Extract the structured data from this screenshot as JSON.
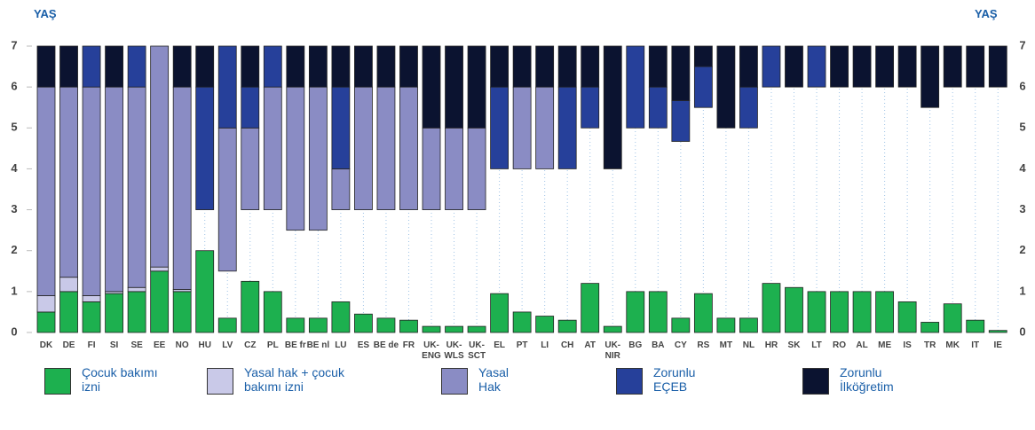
{
  "chart_data": {
    "type": "floating-bar",
    "y_label": "YAŞ",
    "categories": [
      "DK",
      "DE",
      "FI",
      "SI",
      "SE",
      "EE",
      "NO",
      "HU",
      "LV",
      "CZ",
      "PL",
      "BE fr",
      "BE nl",
      "LU",
      "ES",
      "BE de",
      "FR",
      "UK-ENG",
      "UK-WLS",
      "UK-SCT",
      "EL",
      "PT",
      "LI",
      "CH",
      "AT",
      "UK-NIR",
      "BG",
      "BA",
      "CY",
      "RS",
      "MT",
      "NL",
      "HR",
      "SK",
      "LT",
      "RO",
      "AL",
      "ME",
      "IS",
      "TR",
      "MK",
      "IT",
      "IE"
    ],
    "series": [
      {
        "name": "Çocuk bakımı izni",
        "color": "#1db04f",
        "values": [
          [
            0,
            0.5
          ],
          [
            0,
            1
          ],
          [
            0,
            0.75
          ],
          [
            0,
            0.95
          ],
          [
            0,
            1
          ],
          [
            0,
            1.5
          ],
          [
            0,
            1
          ],
          [
            0,
            2
          ],
          [
            0,
            0.35
          ],
          [
            0,
            1.25
          ],
          [
            0,
            1
          ],
          [
            0,
            0.35
          ],
          [
            0,
            0.35
          ],
          [
            0,
            0.75
          ],
          [
            0,
            0.45
          ],
          [
            0,
            0.35
          ],
          [
            0,
            0.3
          ],
          [
            0,
            0.15
          ],
          [
            0,
            0.15
          ],
          [
            0,
            0.15
          ],
          [
            0,
            0.95
          ],
          [
            0,
            0.5
          ],
          [
            0,
            0.4
          ],
          [
            0,
            0.3
          ],
          [
            0,
            1.2
          ],
          [
            0,
            0.15
          ],
          [
            0,
            1
          ],
          [
            0,
            1
          ],
          [
            0,
            0.35
          ],
          [
            0,
            0.95
          ],
          [
            0,
            0.35
          ],
          [
            0,
            0.35
          ],
          [
            0,
            1.2
          ],
          [
            0,
            1.1
          ],
          [
            0,
            1
          ],
          [
            0,
            1
          ],
          [
            0,
            1
          ],
          [
            0,
            1
          ],
          [
            0,
            0.75
          ],
          [
            0,
            0.25
          ],
          [
            0,
            0.7
          ],
          [
            0,
            0.3
          ],
          [
            0,
            0.05
          ]
        ]
      },
      {
        "name": "Yasal hak + çocuk bakımı izni",
        "color": "#c9c9e8",
        "values": [
          [
            0.5,
            0.9
          ],
          [
            1,
            1.35
          ],
          [
            0.75,
            0.9
          ],
          [
            0.95,
            1
          ],
          [
            1,
            1.1
          ],
          [
            1.5,
            1.6
          ],
          [
            1,
            1.05
          ],
          null,
          null,
          null,
          null,
          null,
          null,
          null,
          null,
          null,
          null,
          null,
          null,
          null,
          null,
          null,
          null,
          null,
          null,
          null,
          null,
          null,
          null,
          null,
          null,
          null,
          null,
          null,
          null,
          null,
          null,
          null,
          null,
          null,
          null,
          null,
          null
        ]
      },
      {
        "name": "Yasal Hak",
        "color": "#8a8cc4",
        "values": [
          [
            0.9,
            6
          ],
          [
            1.35,
            6
          ],
          [
            0.9,
            6
          ],
          [
            1,
            6
          ],
          [
            1.1,
            6
          ],
          [
            1.6,
            7
          ],
          [
            1.05,
            6
          ],
          null,
          [
            1.5,
            5
          ],
          [
            3,
            5
          ],
          [
            3,
            6
          ],
          [
            2.5,
            6
          ],
          [
            2.5,
            6
          ],
          [
            3,
            4
          ],
          [
            3,
            6
          ],
          [
            3,
            6
          ],
          [
            3,
            6
          ],
          [
            3,
            5
          ],
          [
            3,
            5
          ],
          [
            3,
            5
          ],
          null,
          [
            4,
            6
          ],
          [
            4,
            6
          ],
          null,
          null,
          null,
          null,
          null,
          null,
          null,
          null,
          null,
          null,
          null,
          null,
          null,
          null,
          null,
          null,
          null,
          null,
          null,
          null
        ]
      },
      {
        "name": "Zorunlu EÇEB",
        "color": "#26409a",
        "values": [
          null,
          null,
          [
            6,
            7
          ],
          null,
          [
            6,
            7
          ],
          null,
          null,
          [
            3,
            6
          ],
          [
            5,
            7
          ],
          [
            5,
            6
          ],
          [
            6,
            7
          ],
          null,
          null,
          [
            4,
            6
          ],
          null,
          null,
          null,
          null,
          null,
          null,
          [
            4,
            6
          ],
          null,
          null,
          [
            4,
            6
          ],
          [
            5,
            6
          ],
          null,
          [
            5,
            7
          ],
          [
            5,
            6
          ],
          [
            4.67,
            5.67
          ],
          [
            5.5,
            6.5
          ],
          null,
          [
            5,
            6
          ],
          [
            6,
            7
          ],
          null,
          [
            6,
            7
          ],
          null,
          null,
          null,
          null,
          null,
          null,
          null,
          null
        ]
      },
      {
        "name": "Zorunlu İlköğretim",
        "color": "#0b1330",
        "values": [
          [
            6,
            7
          ],
          [
            6,
            7
          ],
          null,
          [
            6,
            7
          ],
          null,
          null,
          [
            6,
            7
          ],
          [
            6,
            7
          ],
          null,
          [
            6,
            7
          ],
          null,
          [
            6,
            7
          ],
          [
            6,
            7
          ],
          [
            6,
            7
          ],
          [
            6,
            7
          ],
          [
            6,
            7
          ],
          [
            6,
            7
          ],
          [
            5,
            7
          ],
          [
            5,
            7
          ],
          [
            5,
            7
          ],
          [
            6,
            7
          ],
          [
            6,
            7
          ],
          [
            6,
            7
          ],
          [
            6,
            7
          ],
          [
            6,
            7
          ],
          [
            4,
            7
          ],
          null,
          [
            6,
            7
          ],
          [
            5.67,
            7
          ],
          [
            6.5,
            7
          ],
          [
            5,
            7
          ],
          [
            6,
            7
          ],
          null,
          [
            6,
            7
          ],
          null,
          [
            6,
            7
          ],
          [
            6,
            7
          ],
          [
            6,
            7
          ],
          [
            6,
            7
          ],
          [
            5.5,
            7
          ],
          [
            6,
            7
          ],
          [
            6,
            7
          ],
          [
            6,
            7
          ]
        ]
      }
    ],
    "ylim": [
      0,
      7
    ],
    "yticks": [
      0,
      1,
      2,
      3,
      4,
      5,
      6,
      7
    ]
  }
}
